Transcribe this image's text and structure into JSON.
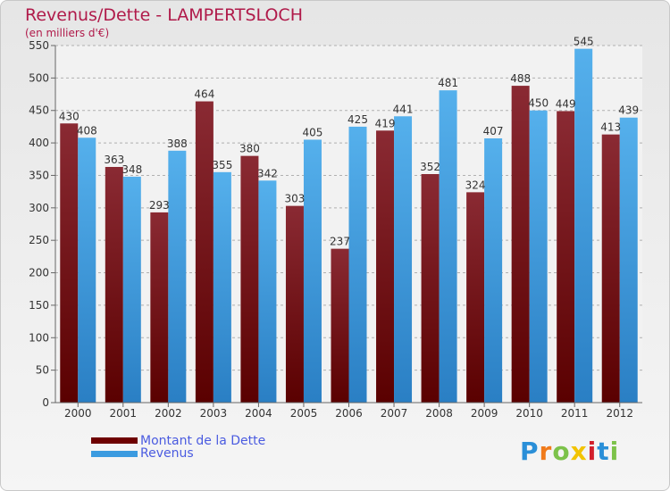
{
  "header": {
    "title": "Revenus/Dette - LAMPERTSLOCH",
    "subtitle": "(en milliers d'€)"
  },
  "legend": {
    "items": [
      {
        "label": "Montant de la Dette",
        "color": "#6e0000"
      },
      {
        "label": "Revenus",
        "color": "#3b9be0"
      }
    ]
  },
  "logo": {
    "text": "Proxiti",
    "letters": [
      "P",
      "r",
      "o",
      "x",
      "i",
      "t",
      "i"
    ],
    "colors": [
      "#2a8fd8",
      "#f07a1a",
      "#7cc24a",
      "#f2c300",
      "#d21f2b",
      "#2a8fd8",
      "#7cc24a"
    ]
  },
  "chart_data": {
    "type": "bar",
    "title": "Revenus/Dette - LAMPERTSLOCH",
    "subtitle": "(en milliers d'€)",
    "categories": [
      "2000",
      "2001",
      "2002",
      "2003",
      "2004",
      "2005",
      "2006",
      "2007",
      "2008",
      "2009",
      "2010",
      "2011",
      "2012"
    ],
    "series": [
      {
        "name": "Montant de la Dette",
        "color": "#6e0000",
        "values": [
          430,
          363,
          293,
          464,
          380,
          303,
          237,
          419,
          352,
          324,
          488,
          449,
          413
        ]
      },
      {
        "name": "Revenus",
        "color": "#3b9be0",
        "values": [
          408,
          348,
          388,
          355,
          342,
          405,
          425,
          441,
          481,
          407,
          450,
          545,
          439
        ]
      }
    ],
    "ylim": [
      0,
      550
    ],
    "yticks": [
      0,
      50,
      100,
      150,
      200,
      250,
      300,
      350,
      400,
      450,
      500,
      550
    ],
    "grid": true,
    "legend_position": "bottom-left"
  }
}
